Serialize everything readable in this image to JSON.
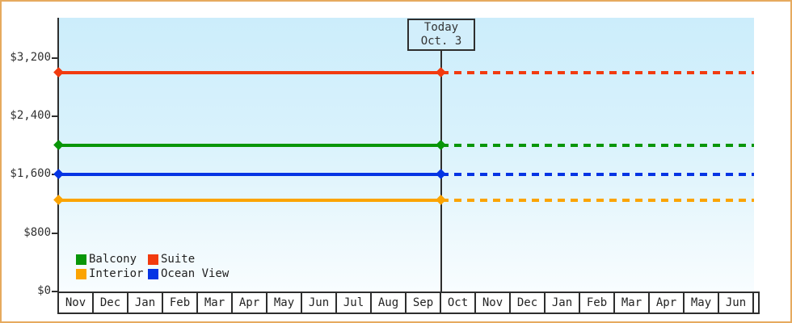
{
  "figure": {
    "border_color": "#e6aa5e",
    "axis_color": "#2e2e2e",
    "plot_background_top": "#ccedfb",
    "plot_background_bottom": "#f8fdff"
  },
  "chart_data": {
    "type": "line",
    "title": "",
    "xlabel": "",
    "ylabel": "",
    "grid": false,
    "x_categories": [
      "Nov",
      "Dec",
      "Jan",
      "Feb",
      "Mar",
      "Apr",
      "May",
      "Jun",
      "Jul",
      "Aug",
      "Sep",
      "Oct",
      "Nov",
      "Dec",
      "Jan",
      "Feb",
      "Mar",
      "Apr",
      "May",
      "Jun"
    ],
    "y_ticks": [
      {
        "label": "$0",
        "value": 0
      },
      {
        "label": "$800",
        "value": 800
      },
      {
        "label": "$1,600",
        "value": 1600
      },
      {
        "label": "$2,400",
        "value": 2400
      },
      {
        "label": "$3,200",
        "value": 3200
      }
    ],
    "ylim": [
      0,
      3750
    ],
    "today_marker": {
      "line1": "Today",
      "line2": "Oct. 3",
      "month_boundary_index": 11,
      "note_style": "solid line before today, dotted projection after today"
    },
    "series": [
      {
        "name": "Suite",
        "color": "#f23b0f",
        "value": 3000
      },
      {
        "name": "Balcony",
        "color": "#089608",
        "value": 2000
      },
      {
        "name": "Ocean View",
        "color": "#0534e4",
        "value": 1600
      },
      {
        "name": "Interior",
        "color": "#fba402",
        "value": 1250
      }
    ],
    "legend_order": [
      "Balcony",
      "Suite",
      "Interior",
      "Ocean View"
    ],
    "legend_position": "bottom-left"
  }
}
